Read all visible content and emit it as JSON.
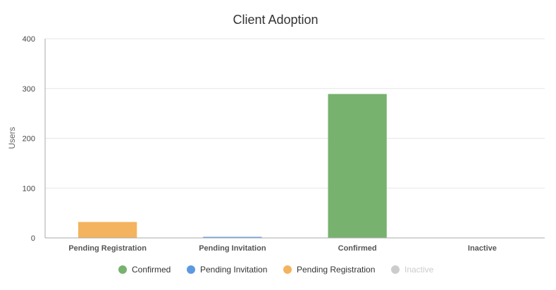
{
  "chart_data": {
    "type": "bar",
    "title": "Client Adoption",
    "ylabel": "Users",
    "xlabel": "",
    "ylim": [
      0,
      400
    ],
    "yticks": [
      0,
      100,
      200,
      300,
      400
    ],
    "grid": true,
    "legend_position": "bottom-center",
    "categories": [
      "Pending Registration",
      "Pending Invitation",
      "Confirmed",
      "Inactive"
    ],
    "series": [
      {
        "name": "Confirmed",
        "color": "#77b26e",
        "values": [
          0,
          0,
          289,
          0
        ],
        "visible": true
      },
      {
        "name": "Pending Invitation",
        "color": "#5b9ae0",
        "values": [
          0,
          1,
          0,
          0
        ],
        "visible": true
      },
      {
        "name": "Pending Registration",
        "color": "#f4b35e",
        "values": [
          32,
          0,
          0,
          0
        ],
        "visible": true
      },
      {
        "name": "Inactive",
        "color": "#cccccc",
        "values": [
          0,
          0,
          0,
          0
        ],
        "visible": false
      }
    ]
  }
}
